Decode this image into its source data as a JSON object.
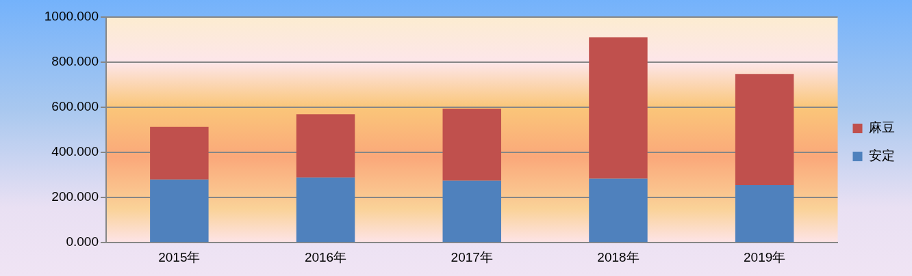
{
  "chart_data": {
    "type": "bar",
    "stacked": true,
    "categories": [
      "2015年",
      "2016年",
      "2017年",
      "2018年",
      "2019年"
    ],
    "series": [
      {
        "name": "安定",
        "color": "#4f81bd",
        "values": [
          280,
          289,
          275,
          284,
          255
        ]
      },
      {
        "name": "麻豆",
        "color": "#c0504d",
        "values": [
          233,
          280,
          319,
          627,
          493
        ]
      }
    ],
    "ylim": [
      0,
      1000
    ],
    "yticks": [
      {
        "value": 0,
        "label": "0.000"
      },
      {
        "value": 200,
        "label": "200.000"
      },
      {
        "value": 400,
        "label": "400.000"
      },
      {
        "value": 600,
        "label": "600.000"
      },
      {
        "value": 800,
        "label": "800.000"
      },
      {
        "value": 1000,
        "label": "1000.000"
      }
    ],
    "grid": "y",
    "legend": "right"
  }
}
